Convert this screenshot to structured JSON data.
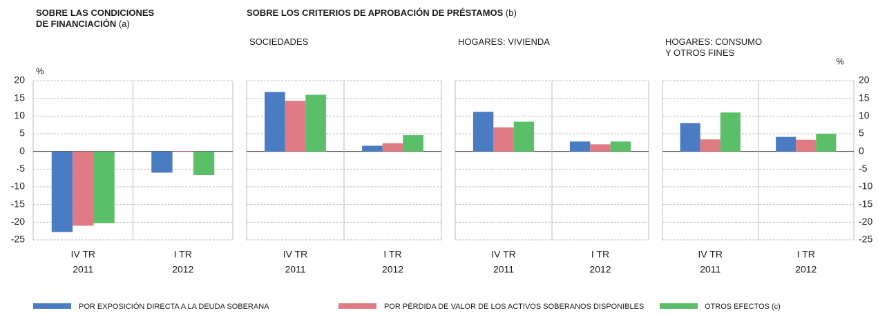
{
  "group_title": "SOBRE LOS CRITERIOS DE APROBACIÓN DE PRÉSTAMOS",
  "group_title_note": "(b)",
  "legend": [
    {
      "name": "POR EXPOSICIÓN DIRECTA A LA DEUDA SOBERANA",
      "color": "#4a7cc4"
    },
    {
      "name": "POR PÉRDIDA DE VALOR DE LOS ACTIVOS SOBERANOS DISPONIBLES",
      "color": "#e07a85"
    },
    {
      "name": "OTROS EFECTOS (c)",
      "color": "#5bbf6a"
    }
  ],
  "chart_data": [
    {
      "type": "bar",
      "title": [
        "SOBRE LAS CONDICIONES",
        "DE FINANCIACIÓN"
      ],
      "title_note": "(a)",
      "ylabel": "%",
      "y_axis": "left",
      "categories": [
        [
          "IV TR",
          "2011"
        ],
        [
          "I TR",
          "2012"
        ]
      ],
      "series": [
        {
          "values": [
            -22.8,
            -6
          ]
        },
        {
          "values": [
            -21,
            0.1
          ]
        },
        {
          "values": [
            -20.3,
            -6.7
          ]
        }
      ],
      "ylim": [
        -25,
        20
      ],
      "yticks": [
        -25,
        -20,
        -15,
        -10,
        -5,
        0,
        5,
        10,
        15,
        20
      ],
      "grid": true
    },
    {
      "type": "bar",
      "title": [
        "SOCIEDADES"
      ],
      "y_axis": "none",
      "categories": [
        [
          "IV TR",
          "2011"
        ],
        [
          "I TR",
          "2012"
        ]
      ],
      "series": [
        {
          "values": [
            16.8,
            1.6
          ]
        },
        {
          "values": [
            14.3,
            2.3
          ]
        },
        {
          "values": [
            16,
            4.6
          ]
        }
      ],
      "ylim": [
        -25,
        20
      ],
      "yticks": [
        -25,
        -20,
        -15,
        -10,
        -5,
        0,
        5,
        10,
        15,
        20
      ],
      "grid": true
    },
    {
      "type": "bar",
      "title": [
        "HOGARES: VIVIENDA"
      ],
      "y_axis": "none",
      "categories": [
        [
          "IV TR",
          "2011"
        ],
        [
          "I TR",
          "2012"
        ]
      ],
      "series": [
        {
          "values": [
            11.2,
            2.8
          ]
        },
        {
          "values": [
            6.8,
            2
          ]
        },
        {
          "values": [
            8.4,
            2.8
          ]
        }
      ],
      "ylim": [
        -25,
        20
      ],
      "yticks": [
        -25,
        -20,
        -15,
        -10,
        -5,
        0,
        5,
        10,
        15,
        20
      ],
      "grid": true
    },
    {
      "type": "bar",
      "title": [
        "HOGARES: CONSUMO",
        "Y OTROS FINES"
      ],
      "ylabel": "%",
      "y_axis": "right",
      "categories": [
        [
          "IV TR",
          "2011"
        ],
        [
          "I TR",
          "2012"
        ]
      ],
      "series": [
        {
          "values": [
            8,
            4.1
          ]
        },
        {
          "values": [
            3.4,
            3.3
          ]
        },
        {
          "values": [
            11,
            5
          ]
        }
      ],
      "ylim": [
        -25,
        20
      ],
      "yticks": [
        -25,
        -20,
        -15,
        -10,
        -5,
        0,
        5,
        10,
        15,
        20
      ],
      "grid": true
    }
  ]
}
